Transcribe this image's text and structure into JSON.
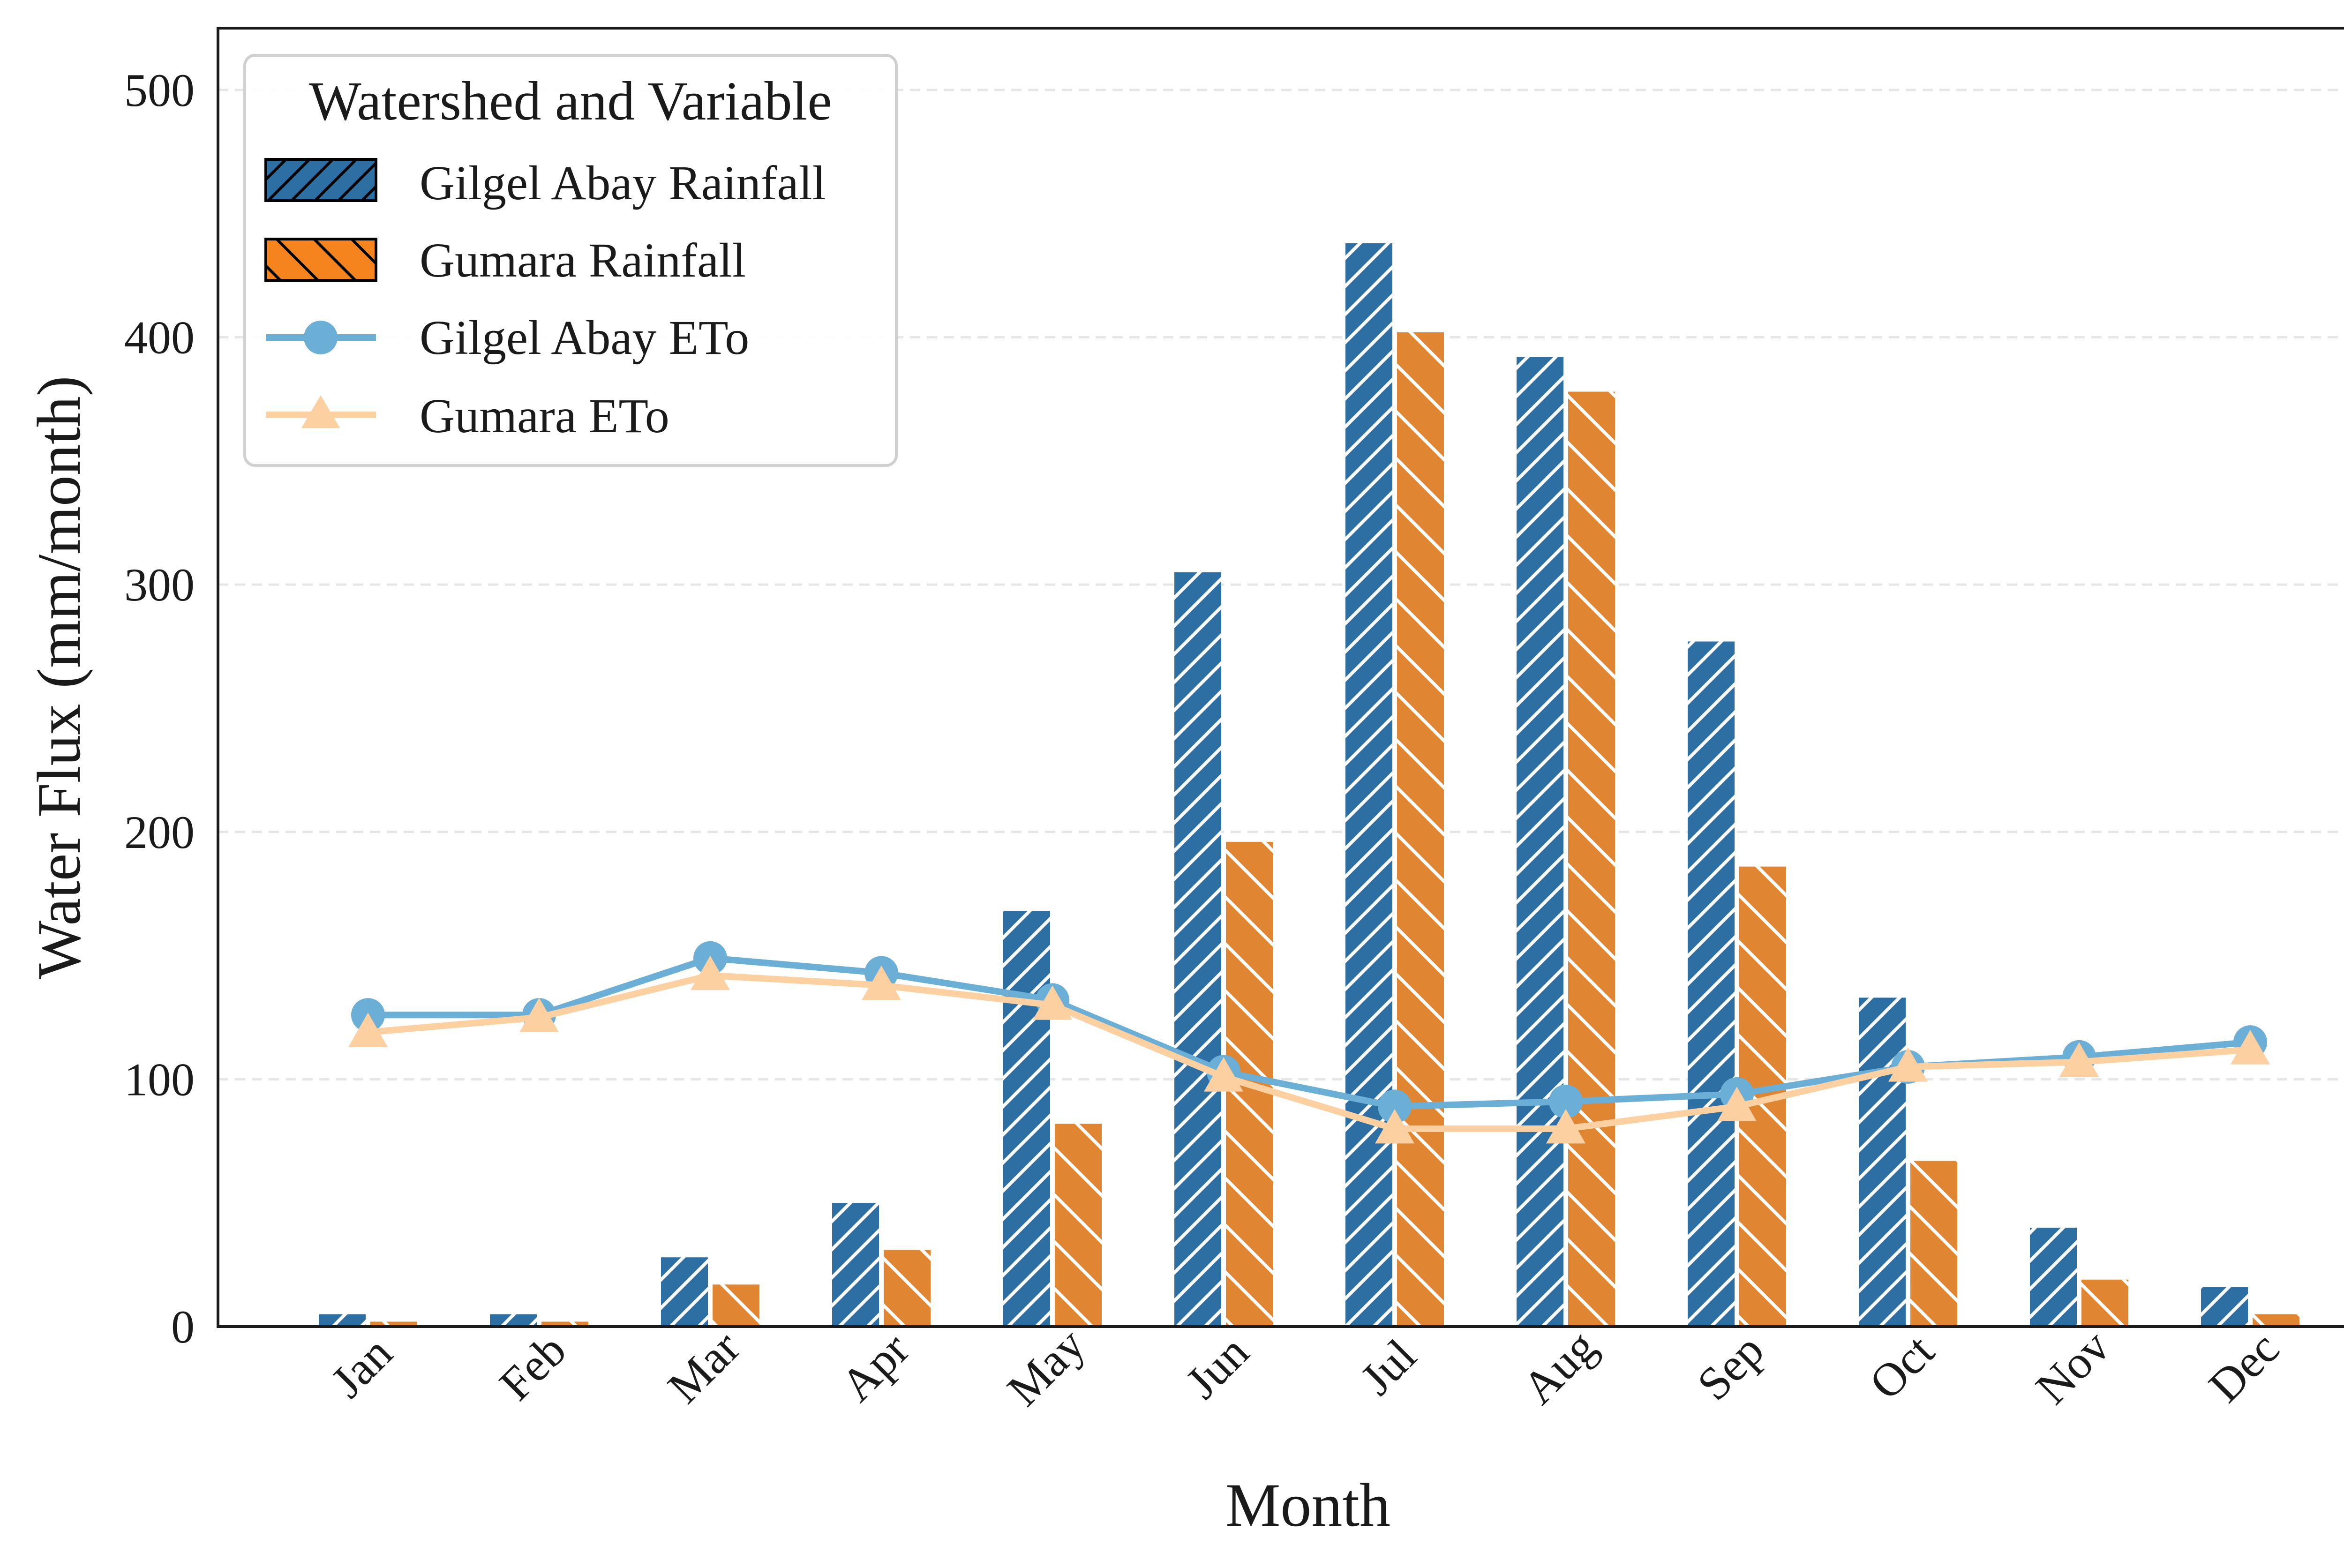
{
  "chart_data": {
    "type": "bar",
    "title": "",
    "xlabel": "Month",
    "ylabel": "Water Flux (mm/month)",
    "ylim": [
      0,
      525
    ],
    "yticks": [
      0,
      100,
      200,
      300,
      400,
      500
    ],
    "grid": "horizontal dashed",
    "legend": {
      "title": "Watershed and Variable",
      "placement": "top-left"
    },
    "categories": [
      "Jan",
      "Feb",
      "Mar",
      "Apr",
      "May",
      "Jun",
      "Jul",
      "Aug",
      "Sep",
      "Oct",
      "Nov",
      "Dec"
    ],
    "series": [
      {
        "name": "Gilgel Abay Rainfall",
        "kind": "bar",
        "hatch": "diagonal-forward",
        "color": "#2e6fa3",
        "values": [
          5,
          5,
          28,
          50,
          168,
          305,
          438,
          392,
          277,
          133,
          40,
          16
        ]
      },
      {
        "name": "Gumara Rainfall",
        "kind": "bar",
        "hatch": "diagonal-back",
        "color": "#e08632",
        "values": [
          2,
          2,
          17,
          31,
          82,
          196,
          402,
          378,
          186,
          67,
          19,
          5
        ]
      },
      {
        "name": "Gilgel Abay ETo",
        "kind": "line",
        "marker": "circle",
        "color": "#6baed6",
        "values": [
          126,
          126,
          149,
          143,
          132,
          103,
          89,
          91,
          94,
          105,
          109,
          115
        ]
      },
      {
        "name": "Gumara ETo",
        "kind": "line",
        "marker": "triangle",
        "color": "#fdd0a2",
        "values": [
          119,
          125,
          142,
          138,
          130,
          101,
          80,
          80,
          89,
          105,
          107,
          112
        ]
      }
    ]
  }
}
